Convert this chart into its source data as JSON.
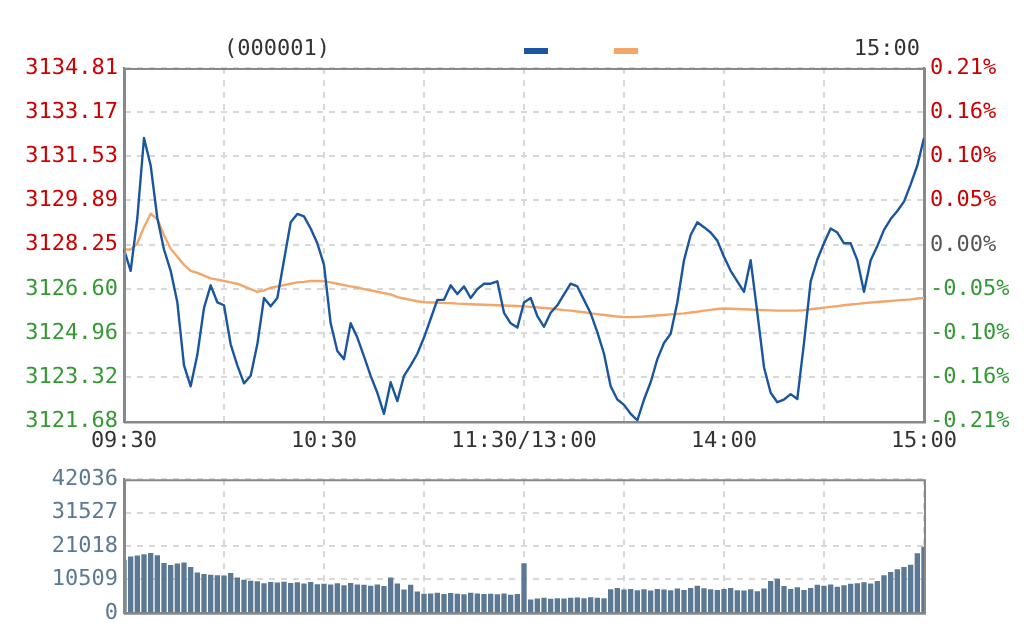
{
  "chart_data": [
    {
      "type": "line",
      "title": "(000001)",
      "annotations": [
        "15:00"
      ],
      "grid": true,
      "categories": [
        "09:30",
        null,
        null,
        null,
        null,
        null,
        null,
        null,
        null,
        null,
        null,
        null,
        null,
        null,
        null,
        null,
        null,
        null,
        null,
        null,
        null,
        null,
        null,
        null,
        null,
        null,
        null,
        null,
        null,
        null,
        "10:30",
        null,
        null,
        null,
        null,
        null,
        null,
        null,
        null,
        null,
        null,
        null,
        null,
        null,
        null,
        null,
        null,
        null,
        null,
        null,
        null,
        null,
        null,
        null,
        null,
        null,
        null,
        null,
        null,
        null,
        "11:30/13:00",
        null,
        null,
        null,
        null,
        null,
        null,
        null,
        null,
        null,
        null,
        null,
        null,
        null,
        null,
        null,
        null,
        null,
        null,
        null,
        null,
        null,
        null,
        null,
        null,
        null,
        null,
        null,
        null,
        null,
        "14:00",
        null,
        null,
        null,
        null,
        null,
        null,
        null,
        null,
        null,
        null,
        null,
        null,
        null,
        null,
        null,
        null,
        null,
        null,
        null,
        null,
        null,
        null,
        null,
        null,
        null,
        null,
        null,
        null,
        null,
        "15:00"
      ],
      "ylim": [
        3121.68,
        3134.81
      ],
      "yticks": [
        3121.68,
        3123.32,
        3124.96,
        {
          "value": 3126.6,
          "label": "3126.60"
        },
        3128.25,
        3129.89,
        3131.53,
        3133.17,
        3134.81
      ],
      "y2lim": [
        -0.2097,
        0.2097
      ],
      "y2ticks": [
        {
          "value": -0.2097,
          "label": "-0.21%"
        },
        {
          "value": -0.1573,
          "label": "-0.16%"
        },
        {
          "value": -0.1049,
          "label": "-0.10%"
        },
        {
          "value": -0.0524,
          "label": "-0.05%"
        },
        {
          "value": 0,
          "label": "0.00%"
        },
        {
          "value": 0.0524,
          "label": "0.05%"
        },
        {
          "value": 0.1049,
          "label": "0.10%"
        },
        {
          "value": 0.1573,
          "label": "0.16%"
        },
        {
          "value": 0.2097,
          "label": "0.21%"
        }
      ],
      "series": [
        {
          "color": "#1a56a0",
          "values": [
            3128.07,
            3127.28,
            3129.24,
            3132.21,
            3131.19,
            3129.24,
            3128.07,
            3127.28,
            3126.11,
            3123.77,
            3122.99,
            3124.16,
            3125.9,
            3126.74,
            3126.11,
            3126.0,
            3124.55,
            3123.77,
            3123.1,
            3123.38,
            3124.55,
            3126.27,
            3125.96,
            3126.27,
            3127.67,
            3129.08,
            3129.39,
            3129.3,
            3128.85,
            3128.3,
            3127.5,
            3125.33,
            3124.3,
            3124.0,
            3125.33,
            3124.8,
            3124.1,
            3123.38,
            3122.75,
            3121.97,
            3123.14,
            3122.44,
            3123.38,
            3123.77,
            3124.2,
            3124.8,
            3125.5,
            3126.2,
            3126.2,
            3126.74,
            3126.42,
            3126.7,
            3126.27,
            3126.6,
            3126.8,
            3126.8,
            3126.89,
            3125.72,
            3125.33,
            3125.17,
            3126.1,
            3126.27,
            3125.6,
            3125.2,
            3125.72,
            3126.0,
            3126.4,
            3126.8,
            3126.7,
            3126.2,
            3125.7,
            3125.0,
            3124.2,
            3122.99,
            3122.5,
            3122.3,
            3121.97,
            3121.73,
            3122.5,
            3123.14,
            3124.0,
            3124.6,
            3124.94,
            3126.11,
            3127.67,
            3128.61,
            3129.08,
            3128.9,
            3128.7,
            3128.4,
            3127.8,
            3127.28,
            3126.89,
            3126.5,
            3127.67,
            3125.72,
            3123.7,
            3122.75,
            3122.4,
            3122.5,
            3122.7,
            3122.52,
            3124.6,
            3126.89,
            3127.7,
            3128.3,
            3128.85,
            3128.7,
            3128.3,
            3128.3,
            3127.67,
            3126.5,
            3127.67,
            3128.2,
            3128.8,
            3129.2,
            3129.5,
            3129.85,
            3130.49,
            3131.19,
            3132.21
          ]
        },
        {
          "color": "#f2a66a",
          "values": [
            3128.07,
            3128.07,
            3128.3,
            3128.9,
            3129.4,
            3129.2,
            3128.6,
            3128.1,
            3127.8,
            3127.5,
            3127.28,
            3127.2,
            3127.1,
            3127.0,
            3126.95,
            3126.9,
            3126.85,
            3126.8,
            3126.7,
            3126.6,
            3126.5,
            3126.55,
            3126.65,
            3126.7,
            3126.75,
            3126.8,
            3126.85,
            3126.87,
            3126.9,
            3126.9,
            3126.89,
            3126.85,
            3126.8,
            3126.75,
            3126.7,
            3126.66,
            3126.6,
            3126.55,
            3126.5,
            3126.45,
            3126.4,
            3126.3,
            3126.25,
            3126.2,
            3126.15,
            3126.11,
            3126.1,
            3126.1,
            3126.08,
            3126.08,
            3126.06,
            3126.05,
            3126.04,
            3126.03,
            3126.02,
            3126.01,
            3126.0,
            3125.99,
            3125.98,
            3125.97,
            3125.96,
            3125.94,
            3125.92,
            3125.9,
            3125.88,
            3125.85,
            3125.82,
            3125.8,
            3125.77,
            3125.74,
            3125.7,
            3125.67,
            3125.64,
            3125.61,
            3125.58,
            3125.56,
            3125.56,
            3125.57,
            3125.58,
            3125.6,
            3125.62,
            3125.64,
            3125.66,
            3125.68,
            3125.7,
            3125.73,
            3125.76,
            3125.8,
            3125.83,
            3125.86,
            3125.88,
            3125.87,
            3125.86,
            3125.85,
            3125.84,
            3125.83,
            3125.82,
            3125.81,
            3125.8,
            3125.8,
            3125.8,
            3125.8,
            3125.82,
            3125.85,
            3125.88,
            3125.91,
            3125.94,
            3125.97,
            3126.0,
            3126.03,
            3126.05,
            3126.08,
            3126.1,
            3126.12,
            3126.14,
            3126.16,
            3126.18,
            3126.2,
            3126.22,
            3126.25,
            3126.27
          ]
        }
      ]
    },
    {
      "type": "bar",
      "grid": true,
      "tick_labels": "y",
      "color": "#5b7894",
      "categories": [
        null,
        null,
        null,
        null,
        null,
        null,
        null,
        null,
        null,
        null,
        null,
        null,
        null,
        null,
        null,
        null,
        null,
        null,
        null,
        null,
        null,
        null,
        null,
        null,
        null,
        null,
        null,
        null,
        null,
        null,
        null,
        null,
        null,
        null,
        null,
        null,
        null,
        null,
        null,
        null,
        null,
        null,
        null,
        null,
        null,
        null,
        null,
        null,
        null,
        null,
        null,
        null,
        null,
        null,
        null,
        null,
        null,
        null,
        null,
        null,
        null,
        null,
        null,
        null,
        null,
        null,
        null,
        null,
        null,
        null,
        null,
        null,
        null,
        null,
        null,
        null,
        null,
        null,
        null,
        null,
        null,
        null,
        null,
        null,
        null,
        null,
        null,
        null,
        null,
        null,
        null,
        null,
        null,
        null,
        null,
        null,
        null,
        null,
        null,
        null,
        null,
        null,
        null,
        null,
        null,
        null,
        null,
        null,
        null,
        null,
        null,
        null,
        null,
        null,
        null,
        null,
        null,
        null,
        null,
        null,
        null
      ],
      "ylim": [
        0,
        42036
      ],
      "yticks": [
        0,
        10509,
        21018,
        31527,
        42036
      ],
      "values": [
        16500,
        17500,
        17800,
        18200,
        18600,
        17900,
        15500,
        14800,
        15300,
        15600,
        14200,
        12500,
        12000,
        11800,
        11600,
        11500,
        12300,
        10900,
        10200,
        9900,
        9700,
        9100,
        9500,
        9300,
        9600,
        9200,
        9400,
        9000,
        9500,
        8800,
        8900,
        8700,
        9100,
        8500,
        9200,
        8700,
        8600,
        8300,
        8700,
        8200,
        10900,
        9000,
        7100,
        8600,
        6500,
        5800,
        5900,
        6100,
        5700,
        6000,
        5800,
        5600,
        6100,
        5900,
        5700,
        5800,
        5600,
        5900,
        5500,
        5700,
        15400,
        4000,
        4300,
        4500,
        4200,
        4400,
        4300,
        4500,
        4600,
        4400,
        4700,
        4500,
        4400,
        7200,
        7600,
        7100,
        7300,
        6900,
        7200,
        6800,
        7300,
        7100,
        6900,
        7400,
        7000,
        7600,
        8300,
        7500,
        7200,
        7000,
        7300,
        7600,
        6900,
        6800,
        7200,
        6600,
        7400,
        9800,
        10500,
        8200,
        7300,
        7800,
        7000,
        7600,
        8600,
        8300,
        8700,
        8000,
        8500,
        8900,
        9100,
        9400,
        9000,
        9800,
        11600,
        12600,
        13500,
        14200,
        14900,
        18500,
        20600
      ]
    }
  ]
}
